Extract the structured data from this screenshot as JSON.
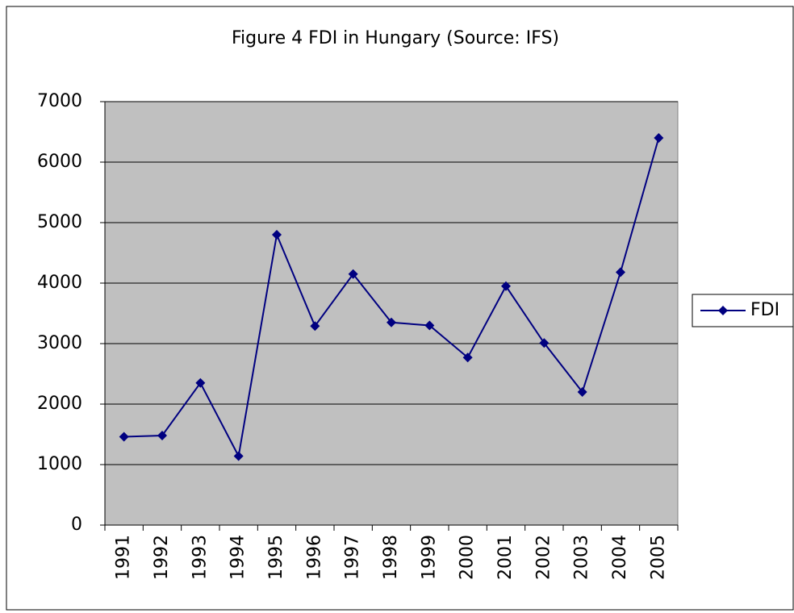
{
  "chart_data": {
    "type": "line",
    "title": "Figure 4 FDI in Hungary (Source: IFS)",
    "categories": [
      "1991",
      "1992",
      "1993",
      "1994",
      "1995",
      "1996",
      "1997",
      "1998",
      "1999",
      "2000",
      "2001",
      "2002",
      "2003",
      "2004",
      "2005"
    ],
    "series": [
      {
        "name": "FDI",
        "color": "#000080",
        "values": [
          1460,
          1480,
          2350,
          1140,
          4800,
          3290,
          4150,
          3350,
          3300,
          2770,
          3950,
          3010,
          2200,
          4180,
          6400
        ]
      }
    ],
    "ylim": [
      0,
      7000
    ],
    "yticks": [
      0,
      1000,
      2000,
      3000,
      4000,
      5000,
      6000,
      7000
    ],
    "grid": true,
    "legend": "right"
  }
}
